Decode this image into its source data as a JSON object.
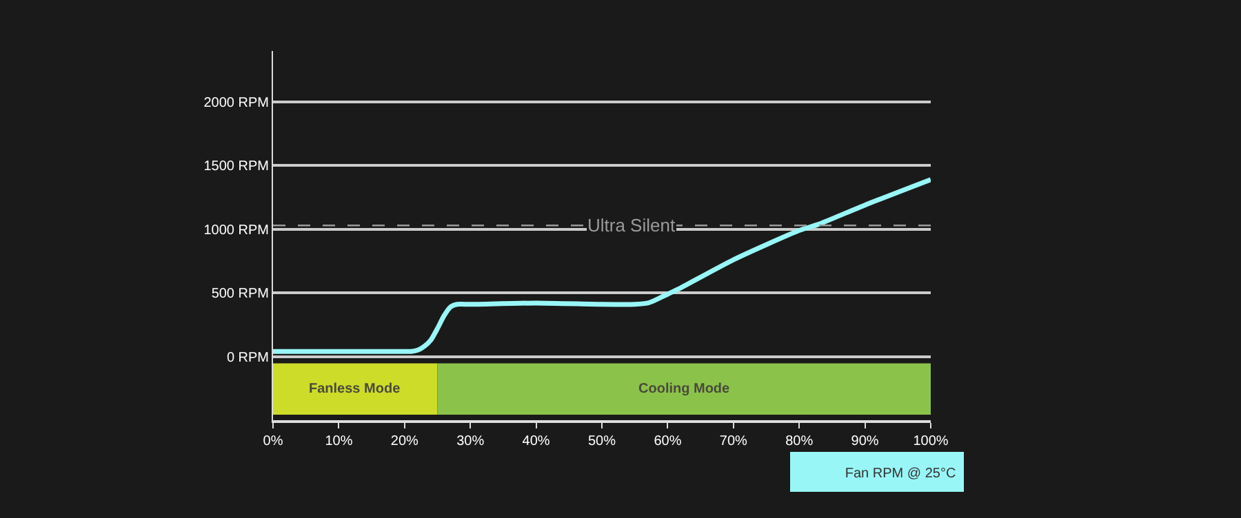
{
  "chart_data": {
    "type": "line",
    "x": [
      0,
      20,
      21,
      22,
      23,
      24,
      25,
      26,
      27,
      28,
      30,
      40,
      50,
      55,
      57,
      58,
      60,
      62,
      70,
      80,
      83,
      90,
      100
    ],
    "series": [
      {
        "name": "Fan RPM @ 25°C",
        "color": "#99f6f6",
        "values": [
          40,
          40,
          40,
          50,
          80,
          130,
          220,
          320,
          390,
          410,
          410,
          420,
          410,
          410,
          420,
          440,
          490,
          540,
          760,
          990,
          1040,
          1190,
          1390
        ]
      }
    ],
    "xlim": [
      0,
      100
    ],
    "xticks": [
      {
        "value": 0,
        "label": "0%"
      },
      {
        "value": 10,
        "label": "10%"
      },
      {
        "value": 20,
        "label": "20%"
      },
      {
        "value": 30,
        "label": "30%"
      },
      {
        "value": 40,
        "label": "40%"
      },
      {
        "value": 50,
        "label": "50%"
      },
      {
        "value": 60,
        "label": "60%"
      },
      {
        "value": 70,
        "label": "70%"
      },
      {
        "value": 80,
        "label": "80%"
      },
      {
        "value": 90,
        "label": "90%"
      },
      {
        "value": 100,
        "label": "100%"
      }
    ],
    "ylim": [
      -500,
      2400
    ],
    "yticks": [
      {
        "value": 0,
        "label": "0 RPM"
      },
      {
        "value": 500,
        "label": "500 RPM"
      },
      {
        "value": 1000,
        "label": "1000 RPM"
      },
      {
        "value": 1500,
        "label": "1500 RPM"
      },
      {
        "value": 2000,
        "label": "2000 RPM"
      }
    ],
    "ref_lines": [
      {
        "axis": "y",
        "value": 1030,
        "label": "Ultra Silent",
        "color": "#9a9a9a",
        "line_style": "dashed"
      }
    ],
    "bands": [
      {
        "axis": "x",
        "from": 0,
        "to": 25,
        "label": "Fanless Mode",
        "color": "#cddc29"
      },
      {
        "axis": "x",
        "from": 25,
        "to": 100,
        "label": "Cooling Mode",
        "color": "#8bc34a"
      }
    ],
    "grid": "y",
    "legend": "bottom right",
    "marker": "none",
    "line_style": "solid"
  }
}
